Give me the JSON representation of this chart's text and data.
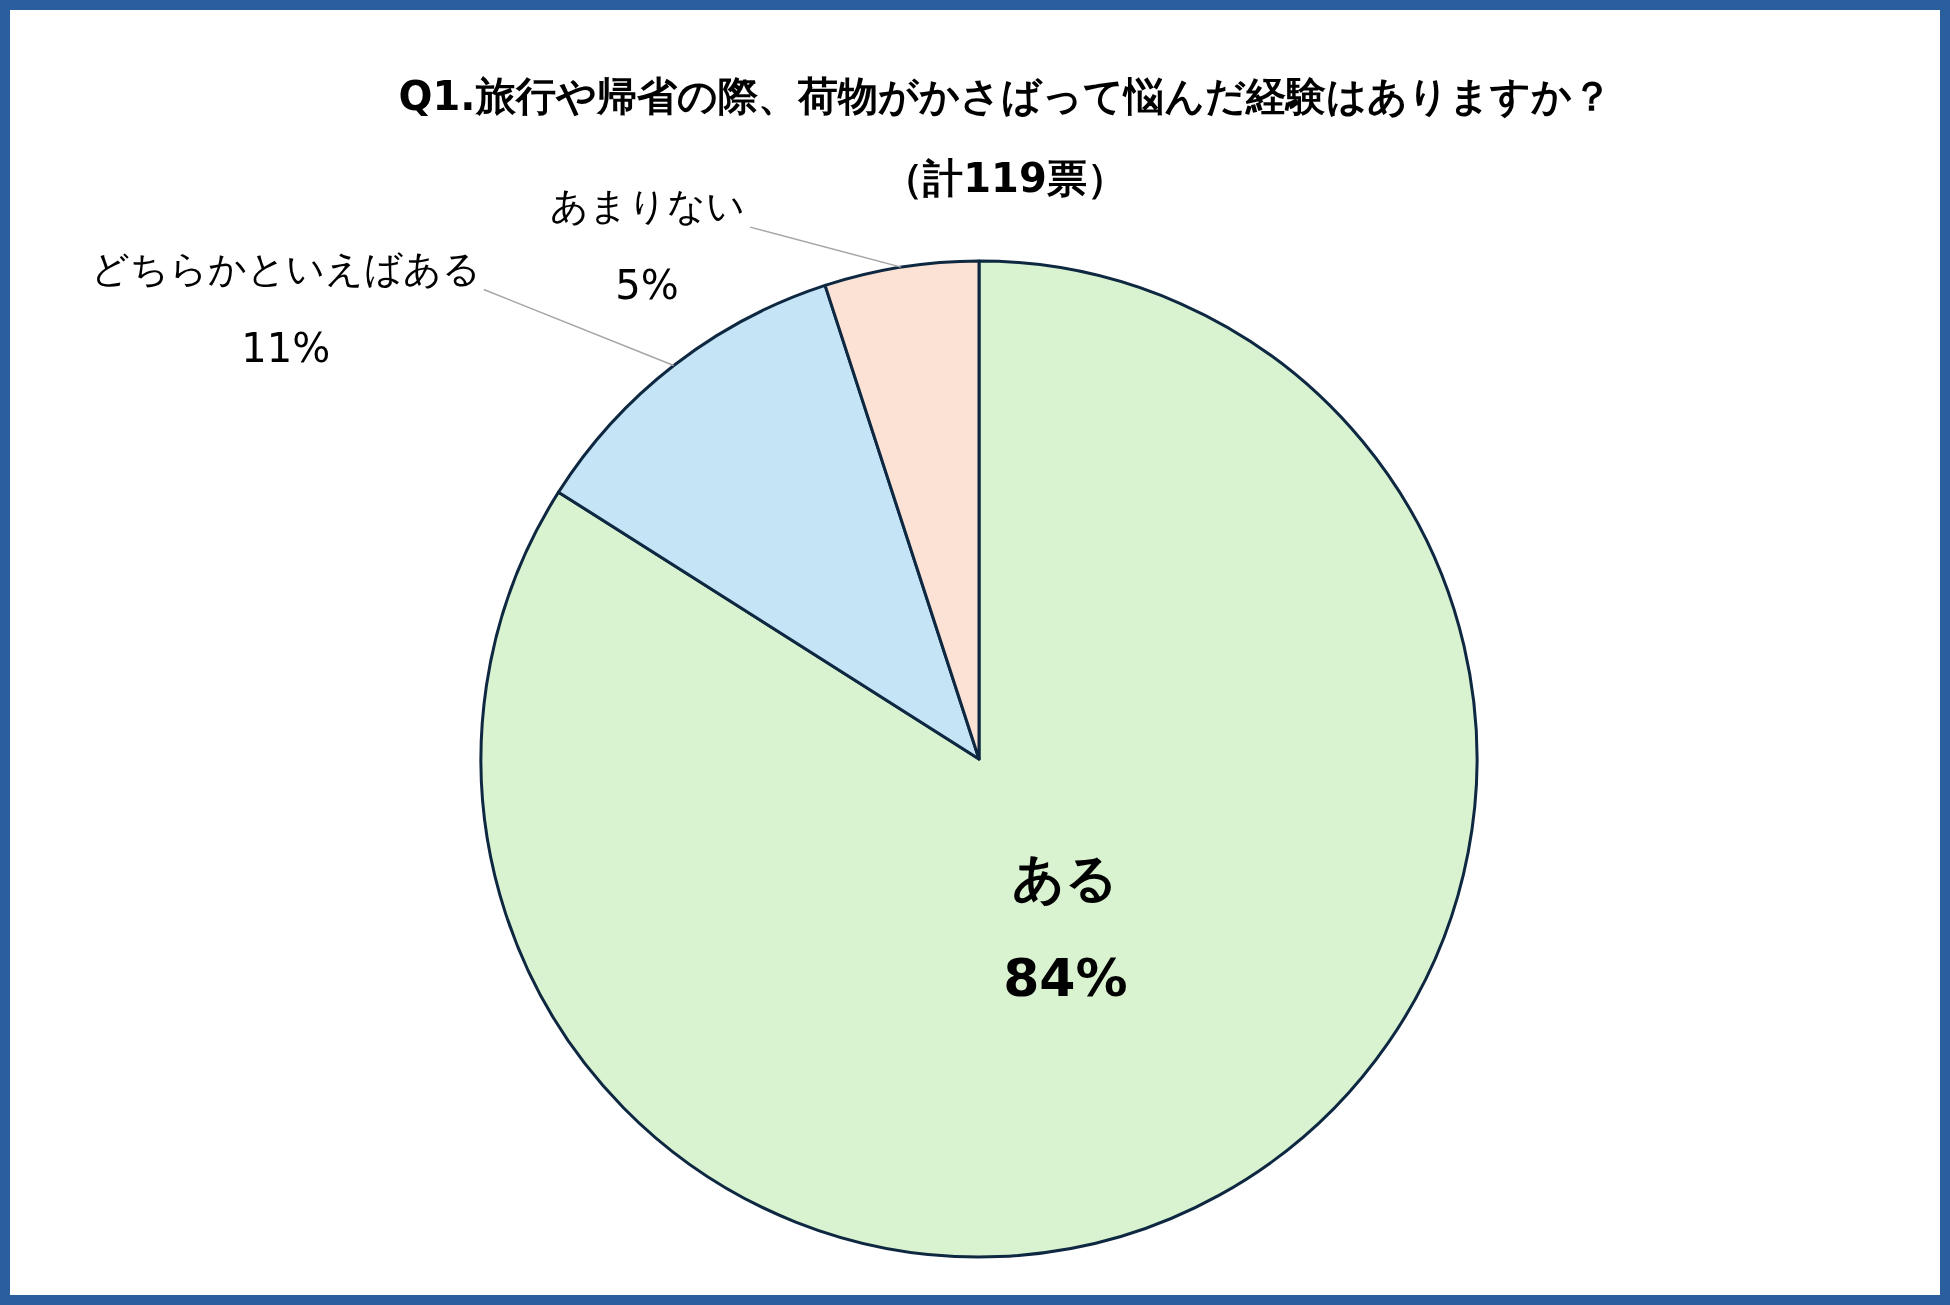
{
  "chart_data": {
    "type": "pie",
    "title": "Q1.旅行や帰省の際、荷物がかさばって悩んだ経験はありますか？",
    "subtitle": "（計119票）",
    "categories": [
      "ある",
      "どちらかといえばある",
      "あまりない"
    ],
    "values": [
      84,
      11,
      5
    ],
    "colors": [
      "#d9f2d0",
      "#c5e4f5",
      "#fbe2d5"
    ],
    "value_labels": [
      "84%",
      "11%",
      "5%"
    ]
  }
}
